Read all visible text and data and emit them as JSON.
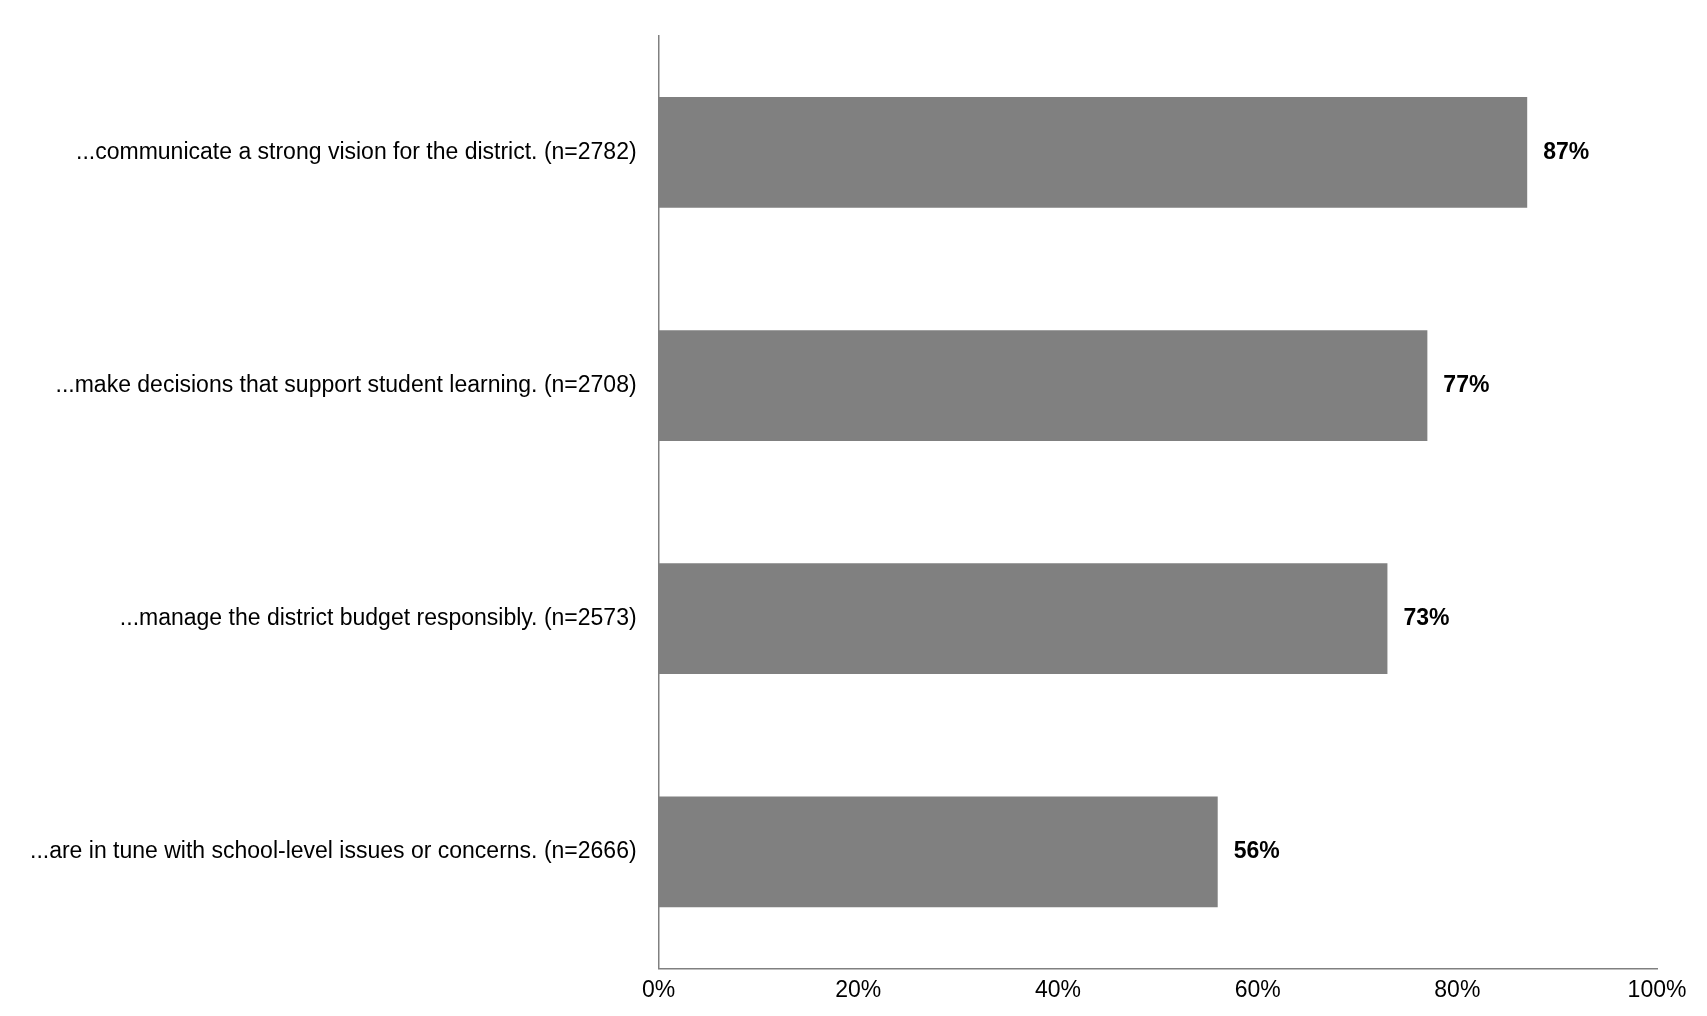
{
  "chart_data": {
    "type": "bar",
    "orientation": "horizontal",
    "categories": [
      "...communicate a strong vision for the district. (n=2782)",
      "...make decisions that support student learning. (n=2708)",
      "...manage the district budget responsibly. (n=2573)",
      "...are in tune with school-level issues or concerns. (n=2666)"
    ],
    "values": [
      87,
      77,
      73,
      56
    ],
    "value_labels": [
      "87%",
      "77%",
      "73%",
      "56%"
    ],
    "color": "#808080",
    "xlim": [
      0,
      100
    ],
    "xticks": [
      {
        "value": 0,
        "label": "0%"
      },
      {
        "value": 20,
        "label": "20%"
      },
      {
        "value": 40,
        "label": "40%"
      },
      {
        "value": 60,
        "label": "60%"
      },
      {
        "value": 80,
        "label": "80%"
      },
      {
        "value": 100,
        "label": "100%"
      }
    ],
    "grid": false,
    "legend": false
  }
}
